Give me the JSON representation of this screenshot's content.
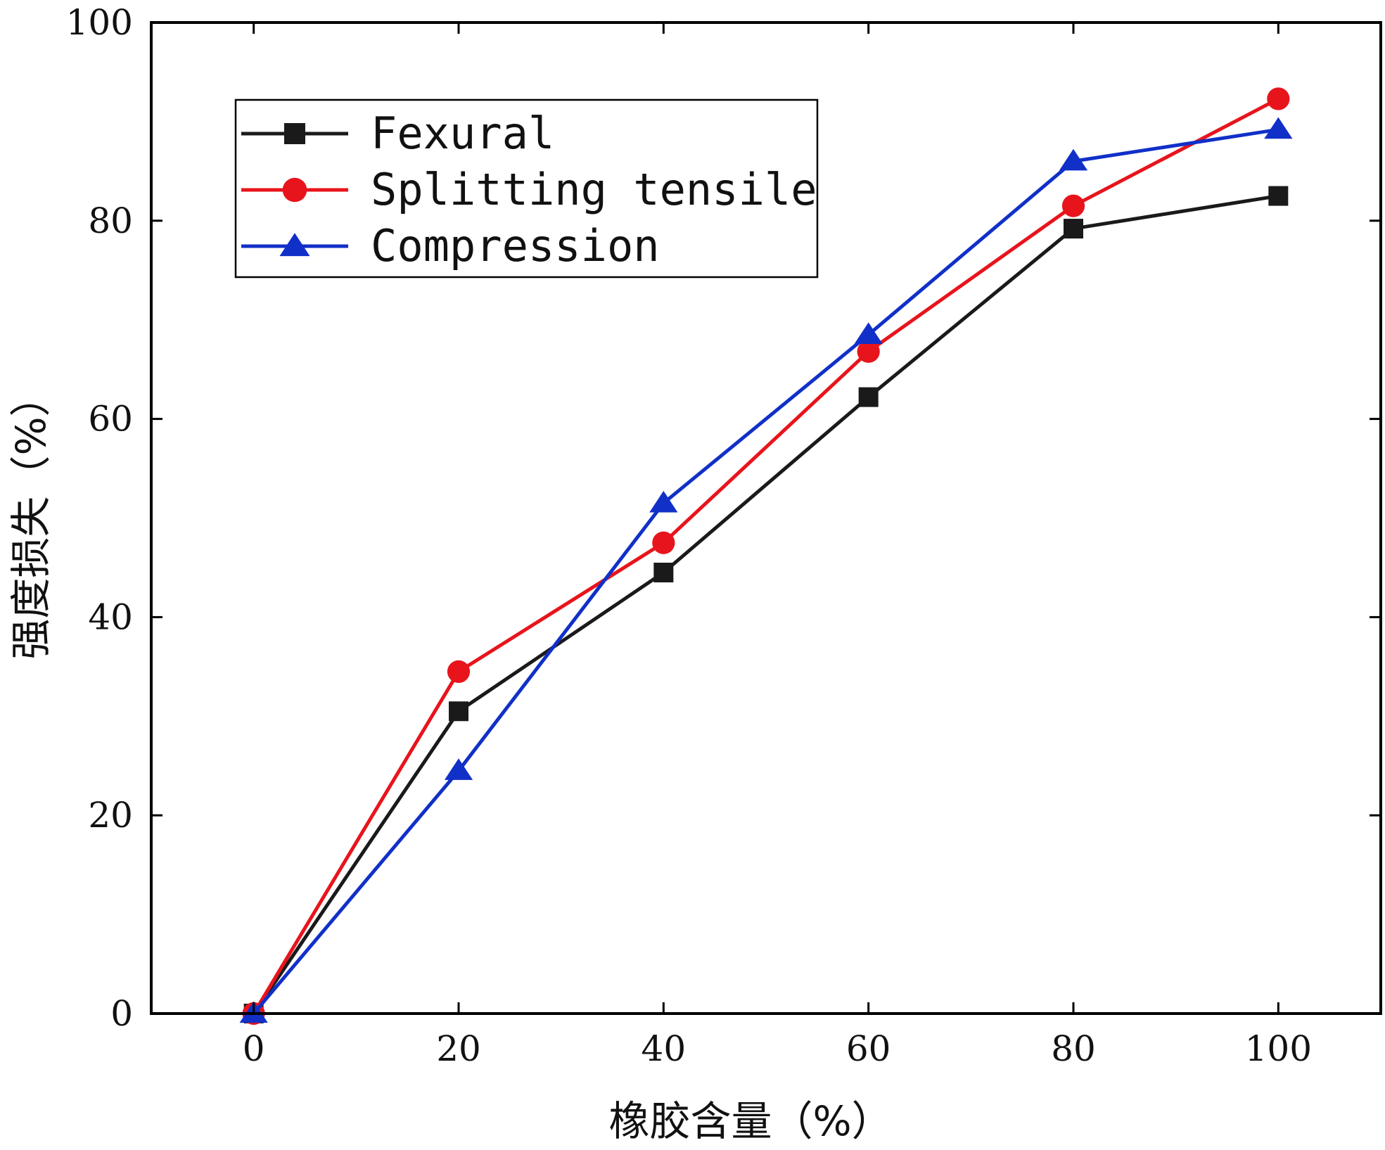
{
  "chart_data": {
    "type": "line",
    "title": "",
    "xlabel": "橡胶含量（%）",
    "ylabel": "强度损失（%）",
    "xlim": [
      -10,
      110
    ],
    "ylim": [
      0,
      100
    ],
    "x": [
      0,
      20,
      40,
      60,
      80,
      100
    ],
    "xticks": [
      0,
      20,
      40,
      60,
      80,
      100
    ],
    "yticks": [
      0,
      20,
      40,
      60,
      80,
      100
    ],
    "grid": false,
    "legend_position": "top-left",
    "series": [
      {
        "name": "Fexural",
        "color": "#1a1a1a",
        "marker": "square",
        "values": [
          0,
          30.5,
          44.5,
          62.2,
          79.2,
          82.5
        ]
      },
      {
        "name": "Splitting tensile",
        "color": "#e8141c",
        "marker": "circle",
        "values": [
          0,
          34.5,
          47.5,
          66.8,
          81.5,
          92.3
        ]
      },
      {
        "name": "Compression",
        "color": "#1030c8",
        "marker": "triangle",
        "values": [
          0,
          24.5,
          51.5,
          68.5,
          86.0,
          89.2
        ]
      }
    ]
  }
}
